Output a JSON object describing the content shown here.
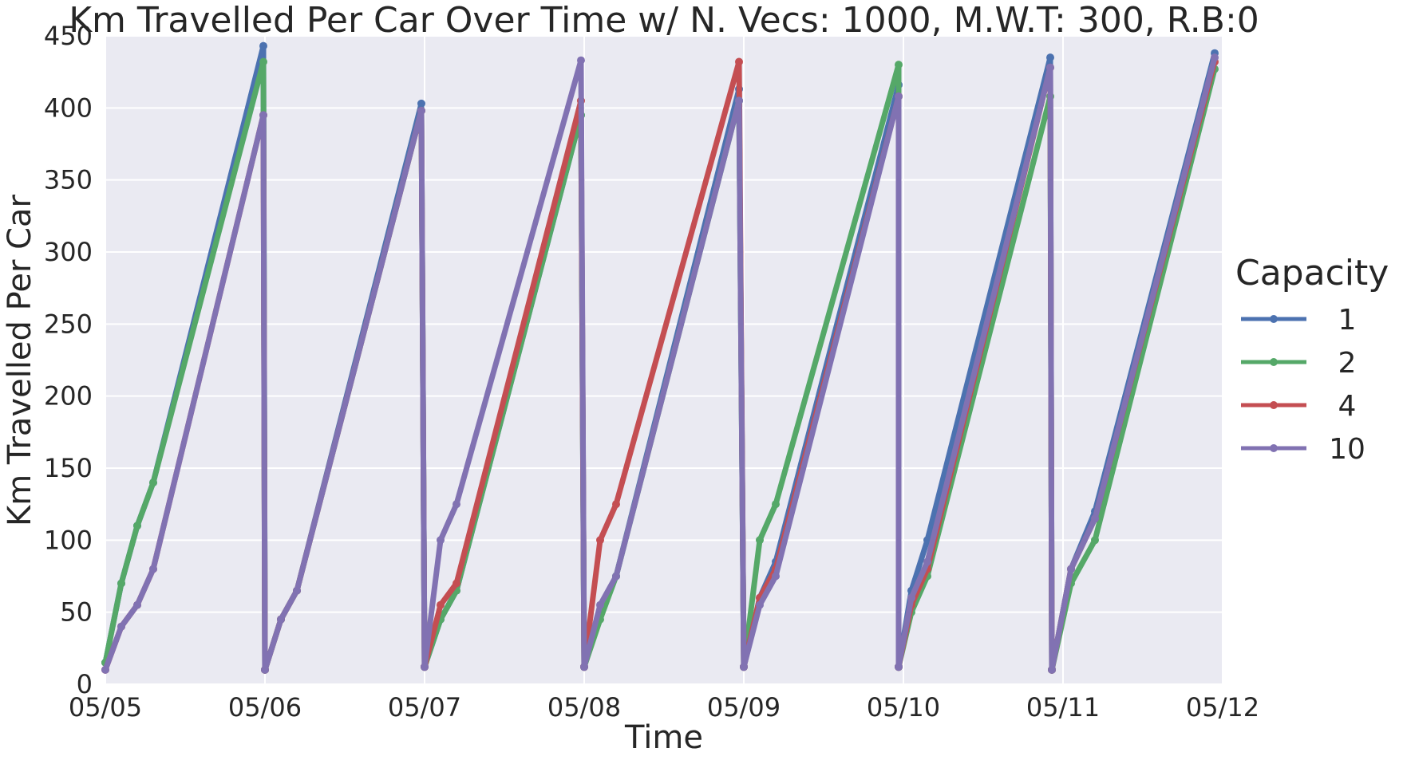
{
  "chart_data": {
    "type": "line",
    "title": "Km Travelled Per Car Over Time w/ N. Vecs: 1000, M.W.T: 300, R.B:0",
    "xlabel": "Time",
    "ylabel": "Km Travelled Per Car",
    "x_ticks": [
      "05/05",
      "05/06",
      "05/07",
      "05/08",
      "05/09",
      "05/10",
      "05/11",
      "05/12"
    ],
    "y_ticks": [
      0,
      50,
      100,
      150,
      200,
      250,
      300,
      350,
      400,
      450
    ],
    "xlim_days": [
      0,
      7
    ],
    "ylim": [
      0,
      450
    ],
    "grid": true,
    "legend": {
      "title": "Capacity",
      "placement": "right",
      "entries": [
        "1",
        "2",
        "4",
        "10"
      ]
    },
    "colors": {
      "1": "#4c72b0",
      "2": "#55a868",
      "4": "#c44e52",
      "10": "#8172b2",
      "background": "#eaeaf2",
      "grid": "#ffffff"
    },
    "series": [
      {
        "name": "1",
        "color": "#4c72b0",
        "segments": [
          [
            [
              0.0,
              15
            ],
            [
              0.1,
              70
            ],
            [
              0.2,
              110
            ],
            [
              0.3,
              140
            ],
            [
              0.99,
              443
            ]
          ],
          [
            [
              1.0,
              10
            ],
            [
              1.1,
              45
            ],
            [
              1.2,
              65
            ],
            [
              1.98,
              403
            ]
          ],
          [
            [
              2.0,
              12
            ],
            [
              2.1,
              45
            ],
            [
              2.2,
              65
            ],
            [
              2.98,
              395
            ]
          ],
          [
            [
              3.0,
              12
            ],
            [
              3.1,
              50
            ],
            [
              3.2,
              75
            ],
            [
              3.97,
              413
            ]
          ],
          [
            [
              4.0,
              12
            ],
            [
              4.1,
              60
            ],
            [
              4.2,
              85
            ],
            [
              4.97,
              416
            ]
          ],
          [
            [
              4.97,
              12
            ],
            [
              5.05,
              65
            ],
            [
              5.15,
              100
            ],
            [
              5.92,
              435
            ]
          ],
          [
            [
              5.93,
              10
            ],
            [
              6.05,
              80
            ],
            [
              6.2,
              120
            ],
            [
              6.95,
              438
            ]
          ]
        ]
      },
      {
        "name": "2",
        "color": "#55a868",
        "segments": [
          [
            [
              0.0,
              15
            ],
            [
              0.1,
              70
            ],
            [
              0.2,
              110
            ],
            [
              0.3,
              140
            ],
            [
              0.99,
              432
            ]
          ],
          [
            [
              1.0,
              10
            ],
            [
              1.1,
              45
            ],
            [
              1.2,
              65
            ],
            [
              1.98,
              398
            ]
          ],
          [
            [
              2.0,
              12
            ],
            [
              2.1,
              45
            ],
            [
              2.2,
              65
            ],
            [
              2.98,
              395
            ]
          ],
          [
            [
              3.0,
              12
            ],
            [
              3.1,
              45
            ],
            [
              3.2,
              75
            ],
            [
              3.97,
              405
            ]
          ],
          [
            [
              4.0,
              12
            ],
            [
              4.1,
              100
            ],
            [
              4.2,
              125
            ],
            [
              4.97,
              430
            ]
          ],
          [
            [
              4.97,
              12
            ],
            [
              5.05,
              50
            ],
            [
              5.15,
              75
            ],
            [
              5.92,
              408
            ]
          ],
          [
            [
              5.93,
              10
            ],
            [
              6.05,
              70
            ],
            [
              6.2,
              100
            ],
            [
              6.95,
              427
            ]
          ]
        ]
      },
      {
        "name": "4",
        "color": "#c44e52",
        "segments": [
          [
            [
              0.0,
              10
            ],
            [
              0.1,
              40
            ],
            [
              0.2,
              55
            ],
            [
              0.3,
              80
            ],
            [
              0.99,
              395
            ]
          ],
          [
            [
              1.0,
              10
            ],
            [
              1.1,
              45
            ],
            [
              1.2,
              65
            ],
            [
              1.98,
              398
            ]
          ],
          [
            [
              2.0,
              12
            ],
            [
              2.1,
              55
            ],
            [
              2.2,
              70
            ],
            [
              2.98,
              405
            ]
          ],
          [
            [
              3.0,
              12
            ],
            [
              3.1,
              100
            ],
            [
              3.2,
              125
            ],
            [
              3.97,
              432
            ]
          ],
          [
            [
              4.0,
              12
            ],
            [
              4.1,
              60
            ],
            [
              4.2,
              80
            ],
            [
              4.97,
              408
            ]
          ],
          [
            [
              4.97,
              12
            ],
            [
              5.05,
              55
            ],
            [
              5.15,
              80
            ],
            [
              5.92,
              428
            ]
          ],
          [
            [
              5.93,
              10
            ],
            [
              6.05,
              80
            ],
            [
              6.2,
              115
            ],
            [
              6.95,
              432
            ]
          ]
        ]
      },
      {
        "name": "10",
        "color": "#8172b2",
        "segments": [
          [
            [
              0.0,
              10
            ],
            [
              0.1,
              40
            ],
            [
              0.2,
              55
            ],
            [
              0.3,
              80
            ],
            [
              0.99,
              395
            ]
          ],
          [
            [
              1.0,
              10
            ],
            [
              1.1,
              45
            ],
            [
              1.2,
              65
            ],
            [
              1.98,
              398
            ]
          ],
          [
            [
              2.0,
              12
            ],
            [
              2.1,
              100
            ],
            [
              2.2,
              125
            ],
            [
              2.98,
              433
            ]
          ],
          [
            [
              3.0,
              12
            ],
            [
              3.1,
              55
            ],
            [
              3.2,
              75
            ],
            [
              3.97,
              405
            ]
          ],
          [
            [
              4.0,
              12
            ],
            [
              4.1,
              55
            ],
            [
              4.2,
              75
            ],
            [
              4.97,
              408
            ]
          ],
          [
            [
              4.97,
              12
            ],
            [
              5.05,
              60
            ],
            [
              5.15,
              85
            ],
            [
              5.92,
              428
            ]
          ],
          [
            [
              5.93,
              10
            ],
            [
              6.05,
              80
            ],
            [
              6.2,
              115
            ],
            [
              6.95,
              435
            ]
          ]
        ]
      }
    ]
  }
}
